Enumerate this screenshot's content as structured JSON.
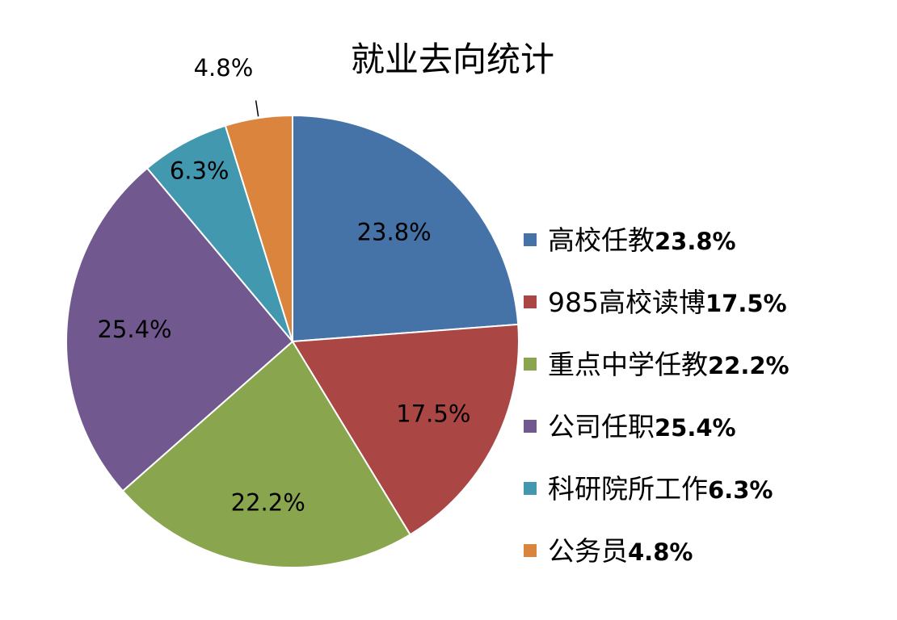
{
  "chart_data": {
    "type": "pie",
    "title": "就业去向统计",
    "slices": [
      {
        "name": "高校任教",
        "value": 23.8,
        "label": "23.8%",
        "legend_pct": "23.8%",
        "color": "#4572A7"
      },
      {
        "name": "985高校读博",
        "value": 17.5,
        "label": "17.5%",
        "legend_pct": "17.5%",
        "color": "#AA4643"
      },
      {
        "name": "重点中学任教",
        "value": 22.2,
        "label": "22.2%",
        "legend_pct": "22.2%",
        "color": "#89A54E"
      },
      {
        "name": "公司任职",
        "value": 25.4,
        "label": "25.4%",
        "legend_pct": "25.4%",
        "color": "#71588F"
      },
      {
        "name": "科研院所工作",
        "value": 6.3,
        "label": "6.3%",
        "legend_pct": "6.3%",
        "color": "#4198AF"
      },
      {
        "name": "公务员",
        "value": 4.8,
        "label": "4.8%",
        "legend_pct": "4.8%",
        "color": "#DB843D"
      }
    ],
    "legend_position": "right"
  }
}
